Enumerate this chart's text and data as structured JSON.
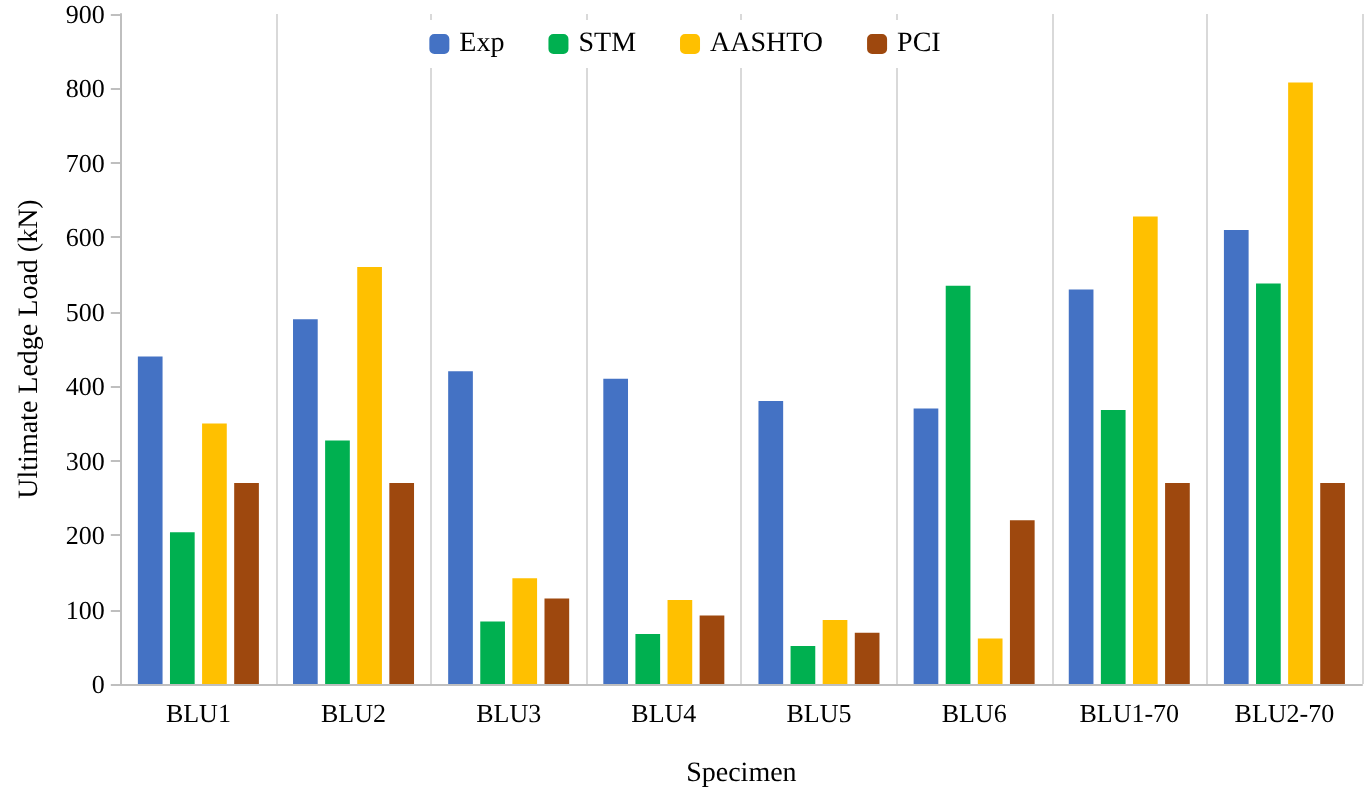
{
  "chart_data": {
    "type": "bar",
    "xlabel": "Specimen",
    "ylabel": "Ultimate Ledge Load (kN)",
    "categories": [
      "BLU1",
      "BLU2",
      "BLU3",
      "BLU4",
      "BLU5",
      "BLU6",
      "BLU1-70",
      "BLU2-70"
    ],
    "series": [
      {
        "name": "Exp",
        "color": "#4472c4",
        "values": [
          440,
          490,
          420,
          410,
          380,
          370,
          530,
          610
        ]
      },
      {
        "name": "STM",
        "color": "#00b050",
        "values": [
          204,
          327,
          84,
          67,
          51,
          535,
          368,
          538
        ]
      },
      {
        "name": "AASHTO",
        "color": "#ffc000",
        "values": [
          350,
          560,
          142,
          113,
          86,
          61,
          628,
          808
        ]
      },
      {
        "name": "PCI",
        "color": "#9e480e",
        "values": [
          270,
          270,
          115,
          92,
          69,
          220,
          270,
          270
        ]
      }
    ],
    "ylim": [
      0,
      900
    ],
    "yticks": [
      0,
      100,
      200,
      300,
      400,
      500,
      600,
      700,
      800,
      900
    ],
    "grid": "x",
    "legend": "top"
  }
}
